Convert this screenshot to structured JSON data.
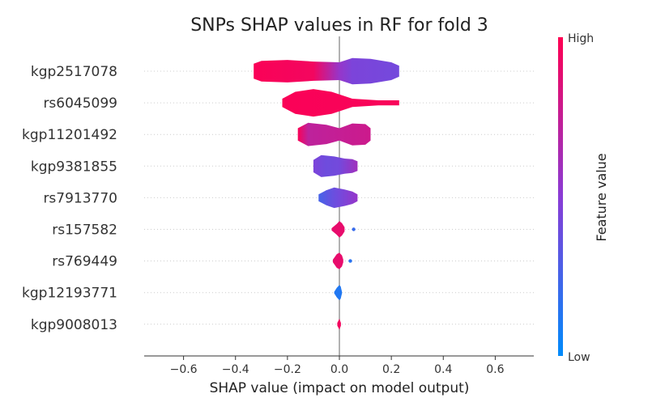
{
  "chart_data": {
    "type": "violin",
    "title": "SNPs SHAP values in RF for fold 3",
    "xlabel": "SHAP value (impact on model output)",
    "xlim": [
      -0.75,
      0.75
    ],
    "xticks": [
      -0.6,
      -0.4,
      -0.2,
      0.0,
      0.2,
      0.4,
      0.6
    ],
    "xtick_labels": [
      "−0.6",
      "−0.4",
      "−0.2",
      "0.0",
      "0.2",
      "0.4",
      "0.6"
    ],
    "colorbar": {
      "label": "Feature value",
      "high_label": "High",
      "low_label": "Low",
      "high_color": "#ff0052",
      "mid_color": "#8a3cd6",
      "low_color": "#008bfb"
    },
    "features": [
      {
        "name": "kgp2517078",
        "min": -0.33,
        "max": 0.23,
        "profile": [
          [
            -0.33,
            0.55
          ],
          [
            -0.3,
            0.75
          ],
          [
            -0.2,
            0.82
          ],
          [
            -0.1,
            0.7
          ],
          [
            0.0,
            0.65
          ],
          [
            0.05,
            0.95
          ],
          [
            0.12,
            0.9
          ],
          [
            0.2,
            0.65
          ],
          [
            0.23,
            0.4
          ]
        ],
        "colors": [
          [
            -0.33,
            0.98
          ],
          [
            -0.1,
            0.95
          ],
          [
            -0.05,
            0.75
          ],
          [
            0.0,
            0.55
          ],
          [
            0.05,
            0.45
          ],
          [
            0.23,
            0.42
          ]
        ]
      },
      {
        "name": "rs6045099",
        "min": -0.22,
        "max": 0.23,
        "profile": [
          [
            -0.22,
            0.3
          ],
          [
            -0.17,
            0.8
          ],
          [
            -0.1,
            1.0
          ],
          [
            -0.03,
            0.8
          ],
          [
            0.05,
            0.3
          ],
          [
            0.15,
            0.18
          ],
          [
            0.23,
            0.18
          ]
        ],
        "colors": [
          [
            -0.22,
            0.98
          ],
          [
            0.23,
            0.97
          ]
        ]
      },
      {
        "name": "kgp11201492",
        "min": -0.16,
        "max": 0.12,
        "profile": [
          [
            -0.16,
            0.45
          ],
          [
            -0.12,
            0.85
          ],
          [
            -0.05,
            0.7
          ],
          [
            0.0,
            0.45
          ],
          [
            0.05,
            0.8
          ],
          [
            0.1,
            0.75
          ],
          [
            0.12,
            0.45
          ]
        ],
        "colors": [
          [
            -0.16,
            0.98
          ],
          [
            -0.12,
            0.72
          ],
          [
            0.0,
            0.75
          ],
          [
            0.12,
            0.78
          ]
        ]
      },
      {
        "name": "kgp9381855",
        "min": -0.1,
        "max": 0.07,
        "profile": [
          [
            -0.1,
            0.45
          ],
          [
            -0.07,
            0.8
          ],
          [
            -0.02,
            0.7
          ],
          [
            0.02,
            0.55
          ],
          [
            0.05,
            0.5
          ],
          [
            0.07,
            0.35
          ]
        ],
        "colors": [
          [
            -0.1,
            0.45
          ],
          [
            -0.05,
            0.4
          ],
          [
            0.0,
            0.42
          ],
          [
            0.07,
            0.6
          ]
        ]
      },
      {
        "name": "rs7913770",
        "min": -0.08,
        "max": 0.07,
        "profile": [
          [
            -0.08,
            0.25
          ],
          [
            -0.05,
            0.55
          ],
          [
            -0.02,
            0.75
          ],
          [
            0.02,
            0.6
          ],
          [
            0.05,
            0.45
          ],
          [
            0.07,
            0.25
          ]
        ],
        "colors": [
          [
            -0.08,
            0.25
          ],
          [
            -0.04,
            0.35
          ],
          [
            0.0,
            0.42
          ],
          [
            0.07,
            0.55
          ]
        ]
      },
      {
        "name": "rs157582",
        "min": -0.03,
        "max": 0.02,
        "profile": [
          [
            -0.03,
            0.08
          ],
          [
            -0.01,
            0.4
          ],
          [
            0.0,
            0.6
          ],
          [
            0.01,
            0.45
          ],
          [
            0.02,
            0.15
          ]
        ],
        "colors": [
          [
            -0.03,
            0.9
          ],
          [
            0.02,
            0.9
          ]
        ],
        "outliers": [
          {
            "x": 0.055,
            "color": 0.2
          }
        ]
      },
      {
        "name": "rs769449",
        "min": -0.025,
        "max": 0.015,
        "profile": [
          [
            -0.025,
            0.1
          ],
          [
            -0.01,
            0.5
          ],
          [
            0.0,
            0.6
          ],
          [
            0.01,
            0.4
          ],
          [
            0.015,
            0.1
          ]
        ],
        "colors": [
          [
            -0.025,
            0.9
          ],
          [
            0.015,
            0.9
          ]
        ],
        "outliers": [
          {
            "x": 0.042,
            "color": 0.15
          }
        ]
      },
      {
        "name": "kgp12193771",
        "min": -0.02,
        "max": 0.01,
        "profile": [
          [
            -0.02,
            0.05
          ],
          [
            -0.01,
            0.35
          ],
          [
            0.0,
            0.55
          ],
          [
            0.005,
            0.45
          ],
          [
            0.01,
            0.05
          ]
        ],
        "colors": [
          [
            -0.02,
            0.12
          ],
          [
            0.01,
            0.12
          ]
        ]
      },
      {
        "name": "kgp9008013",
        "min": -0.008,
        "max": 0.006,
        "profile": [
          [
            -0.008,
            0.1
          ],
          [
            0.0,
            0.4
          ],
          [
            0.006,
            0.1
          ]
        ],
        "colors": [
          [
            -0.008,
            0.95
          ],
          [
            0.006,
            0.95
          ]
        ]
      }
    ]
  }
}
